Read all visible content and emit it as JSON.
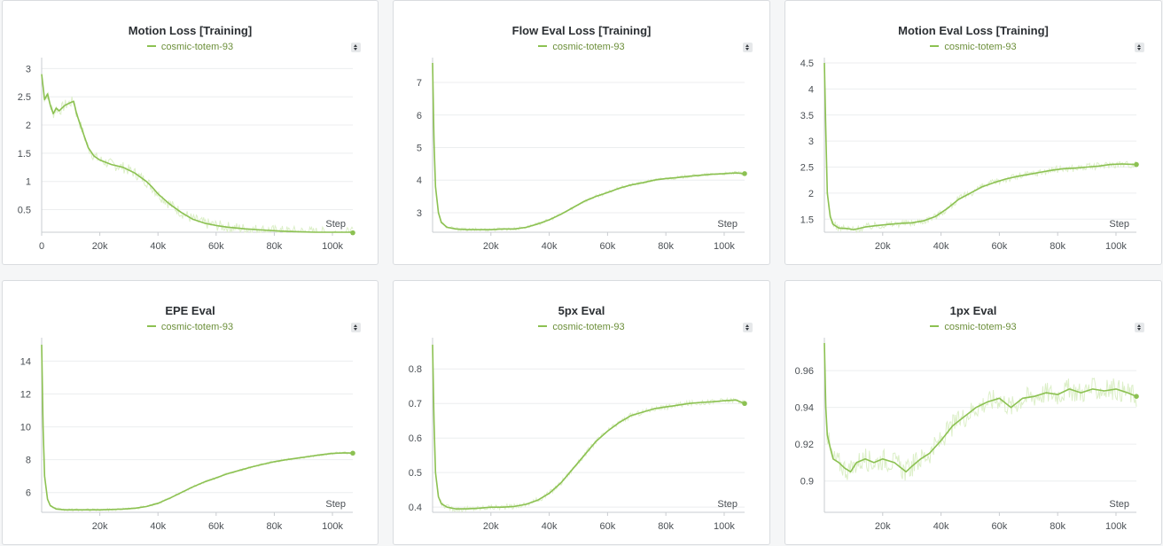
{
  "theme": {
    "series_color": "#8cc152",
    "raw_color": "#dcefc8",
    "grid_color": "#eceeef",
    "axis_color": "#c9ccd0"
  },
  "chart_data": [
    {
      "type": "line",
      "title": "Motion Loss [Training]",
      "legend": "cosmic-totem-93",
      "xlabel": "Step",
      "xlim": [
        0,
        107000
      ],
      "ylim": [
        0.1,
        3.1
      ],
      "xticks": [
        0,
        20000,
        40000,
        60000,
        80000,
        100000
      ],
      "xtick_labels": [
        "0",
        "20k",
        "40k",
        "60k",
        "80k",
        "100k"
      ],
      "yticks": [
        0.5,
        1,
        1.5,
        2,
        2.5,
        3
      ],
      "ytick_labels": [
        "0.5",
        "1",
        "1.5",
        "2",
        "2.5",
        "3"
      ],
      "series": [
        {
          "name": "cosmic-totem-93",
          "x": [
            0,
            1000,
            2000,
            3000,
            4000,
            5000,
            6000,
            8000,
            10000,
            11000,
            12000,
            14000,
            16000,
            18000,
            20000,
            24000,
            28000,
            32000,
            36000,
            38000,
            40000,
            44000,
            48000,
            52000,
            56000,
            60000,
            64000,
            70000,
            76000,
            82000,
            88000,
            94000,
            100000,
            104000,
            107000
          ],
          "y": [
            2.9,
            2.45,
            2.55,
            2.35,
            2.2,
            2.3,
            2.25,
            2.35,
            2.4,
            2.42,
            2.2,
            1.9,
            1.6,
            1.45,
            1.38,
            1.3,
            1.25,
            1.15,
            1.0,
            0.9,
            0.78,
            0.6,
            0.45,
            0.33,
            0.26,
            0.22,
            0.19,
            0.16,
            0.14,
            0.12,
            0.11,
            0.1,
            0.09,
            0.09,
            0.09
          ],
          "noise": 0.1,
          "last": 0.09
        }
      ]
    },
    {
      "type": "line",
      "title": "Flow Eval Loss [Training]",
      "legend": "cosmic-totem-93",
      "xlabel": "Step",
      "xlim": [
        0,
        107000
      ],
      "ylim": [
        2.4,
        7.6
      ],
      "xticks": [
        20000,
        40000,
        60000,
        80000,
        100000
      ],
      "xtick_labels": [
        "20k",
        "40k",
        "60k",
        "80k",
        "100k"
      ],
      "yticks": [
        3,
        4,
        5,
        6,
        7
      ],
      "ytick_labels": [
        "3",
        "4",
        "5",
        "6",
        "7"
      ],
      "series": [
        {
          "name": "cosmic-totem-93",
          "x": [
            0,
            500,
            1000,
            2000,
            3000,
            5000,
            8000,
            12000,
            16000,
            20000,
            24000,
            28000,
            32000,
            36000,
            40000,
            44000,
            48000,
            52000,
            56000,
            60000,
            64000,
            68000,
            72000,
            76000,
            80000,
            84000,
            88000,
            92000,
            96000,
            100000,
            104000,
            107000
          ],
          "y": [
            7.6,
            5.2,
            3.8,
            3.0,
            2.7,
            2.55,
            2.5,
            2.48,
            2.48,
            2.48,
            2.5,
            2.5,
            2.55,
            2.65,
            2.78,
            2.95,
            3.15,
            3.35,
            3.5,
            3.62,
            3.75,
            3.85,
            3.92,
            4.0,
            4.05,
            4.08,
            4.12,
            4.15,
            4.18,
            4.2,
            4.22,
            4.2
          ],
          "noise": 0.05,
          "last": 4.2
        }
      ]
    },
    {
      "type": "line",
      "title": "Motion Eval Loss [Training]",
      "legend": "cosmic-totem-93",
      "xlabel": "Step",
      "xlim": [
        0,
        107000
      ],
      "ylim": [
        1.25,
        4.5
      ],
      "xticks": [
        20000,
        40000,
        60000,
        80000,
        100000
      ],
      "xtick_labels": [
        "20k",
        "40k",
        "60k",
        "80k",
        "100k"
      ],
      "yticks": [
        1.5,
        2,
        2.5,
        3,
        3.5,
        4,
        4.5
      ],
      "ytick_labels": [
        "1.5",
        "2",
        "2.5",
        "3",
        "3.5",
        "4",
        "4.5"
      ],
      "series": [
        {
          "name": "cosmic-totem-93",
          "x": [
            0,
            500,
            1000,
            2000,
            3000,
            5000,
            8000,
            10000,
            14000,
            18000,
            22000,
            26000,
            30000,
            34000,
            38000,
            42000,
            46000,
            50000,
            54000,
            58000,
            62000,
            66000,
            70000,
            74000,
            78000,
            82000,
            86000,
            90000,
            94000,
            98000,
            102000,
            107000
          ],
          "y": [
            4.5,
            3.2,
            2.0,
            1.55,
            1.4,
            1.33,
            1.32,
            1.3,
            1.35,
            1.38,
            1.4,
            1.42,
            1.43,
            1.47,
            1.55,
            1.7,
            1.88,
            2.0,
            2.12,
            2.2,
            2.27,
            2.32,
            2.36,
            2.4,
            2.44,
            2.47,
            2.48,
            2.5,
            2.52,
            2.55,
            2.56,
            2.55
          ],
          "noise": 0.07,
          "last": 2.55
        }
      ]
    },
    {
      "type": "line",
      "title": "EPE Eval",
      "legend": "cosmic-totem-93",
      "xlabel": "Step",
      "xlim": [
        0,
        107000
      ],
      "ylim": [
        4.8,
        15.1
      ],
      "xticks": [
        20000,
        40000,
        60000,
        80000,
        100000
      ],
      "xtick_labels": [
        "20k",
        "40k",
        "60k",
        "80k",
        "100k"
      ],
      "yticks": [
        6,
        8,
        10,
        12,
        14
      ],
      "ytick_labels": [
        "6",
        "8",
        "10",
        "12",
        "14"
      ],
      "series": [
        {
          "name": "cosmic-totem-93",
          "x": [
            0,
            500,
            1000,
            2000,
            3000,
            5000,
            8000,
            12000,
            16000,
            20000,
            24000,
            28000,
            32000,
            36000,
            40000,
            44000,
            48000,
            52000,
            56000,
            60000,
            64000,
            68000,
            72000,
            76000,
            80000,
            84000,
            88000,
            92000,
            96000,
            100000,
            104000,
            107000
          ],
          "y": [
            15.0,
            10.0,
            7.0,
            5.6,
            5.2,
            5.0,
            4.95,
            4.95,
            4.95,
            4.95,
            4.97,
            5.0,
            5.05,
            5.15,
            5.35,
            5.65,
            6.0,
            6.35,
            6.65,
            6.9,
            7.15,
            7.35,
            7.55,
            7.72,
            7.88,
            8.0,
            8.1,
            8.2,
            8.3,
            8.38,
            8.42,
            8.4
          ],
          "noise": 0.08,
          "last": 8.4
        }
      ]
    },
    {
      "type": "line",
      "title": "5px Eval",
      "legend": "cosmic-totem-93",
      "xlabel": "Step",
      "xlim": [
        0,
        107000
      ],
      "ylim": [
        0.385,
        0.875
      ],
      "xticks": [
        20000,
        40000,
        60000,
        80000,
        100000
      ],
      "xtick_labels": [
        "20k",
        "40k",
        "60k",
        "80k",
        "100k"
      ],
      "yticks": [
        0.4,
        0.5,
        0.6,
        0.7,
        0.8
      ],
      "ytick_labels": [
        "0.4",
        "0.5",
        "0.6",
        "0.7",
        "0.8"
      ],
      "series": [
        {
          "name": "cosmic-totem-93",
          "x": [
            0,
            500,
            1000,
            2000,
            3000,
            5000,
            8000,
            12000,
            16000,
            20000,
            24000,
            28000,
            32000,
            36000,
            40000,
            44000,
            48000,
            52000,
            56000,
            60000,
            64000,
            68000,
            72000,
            76000,
            80000,
            84000,
            88000,
            92000,
            96000,
            100000,
            104000,
            107000
          ],
          "y": [
            0.87,
            0.65,
            0.5,
            0.43,
            0.41,
            0.4,
            0.395,
            0.395,
            0.397,
            0.4,
            0.4,
            0.402,
            0.408,
            0.42,
            0.44,
            0.47,
            0.51,
            0.55,
            0.59,
            0.62,
            0.645,
            0.665,
            0.675,
            0.685,
            0.69,
            0.695,
            0.7,
            0.703,
            0.705,
            0.708,
            0.71,
            0.7
          ],
          "noise": 0.008,
          "last": 0.7
        }
      ]
    },
    {
      "type": "line",
      "title": "1px Eval",
      "legend": "cosmic-totem-93",
      "xlabel": "Step",
      "xlim": [
        0,
        107000
      ],
      "ylim": [
        0.883,
        0.975
      ],
      "xticks": [
        20000,
        40000,
        60000,
        80000,
        100000
      ],
      "xtick_labels": [
        "20k",
        "40k",
        "60k",
        "80k",
        "100k"
      ],
      "yticks": [
        0.9,
        0.92,
        0.94,
        0.96
      ],
      "ytick_labels": [
        "0.9",
        "0.92",
        "0.94",
        "0.96"
      ],
      "series": [
        {
          "name": "cosmic-totem-93",
          "x": [
            0,
            500,
            1000,
            2000,
            3000,
            5000,
            7000,
            9000,
            11000,
            14000,
            17000,
            20000,
            24000,
            28000,
            30000,
            33000,
            36000,
            40000,
            44000,
            48000,
            52000,
            56000,
            60000,
            64000,
            68000,
            72000,
            76000,
            80000,
            84000,
            88000,
            92000,
            96000,
            100000,
            104000,
            107000
          ],
          "y": [
            0.975,
            0.94,
            0.925,
            0.918,
            0.912,
            0.91,
            0.907,
            0.905,
            0.91,
            0.912,
            0.91,
            0.912,
            0.91,
            0.905,
            0.908,
            0.912,
            0.915,
            0.922,
            0.93,
            0.935,
            0.94,
            0.943,
            0.945,
            0.94,
            0.945,
            0.946,
            0.948,
            0.947,
            0.95,
            0.948,
            0.95,
            0.949,
            0.95,
            0.948,
            0.946
          ],
          "noise": 0.006,
          "last": 0.946
        }
      ]
    }
  ]
}
